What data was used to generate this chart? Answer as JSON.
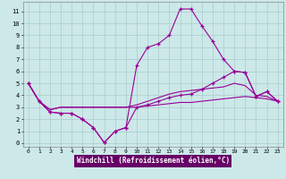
{
  "xlabel": "Windchill (Refroidissement éolien,°C)",
  "background_color": "#cce8e8",
  "grid_color": "#aacccc",
  "line_color": "#990099",
  "xlabel_bg": "#660066",
  "xlabel_fg": "#ffffff",
  "xlim": [
    -0.5,
    23.5
  ],
  "ylim": [
    -0.3,
    11.8
  ],
  "xticks": [
    0,
    1,
    2,
    3,
    4,
    5,
    6,
    7,
    8,
    9,
    10,
    11,
    12,
    13,
    14,
    15,
    16,
    17,
    18,
    19,
    20,
    21,
    22,
    23
  ],
  "yticks": [
    0,
    1,
    2,
    3,
    4,
    5,
    6,
    7,
    8,
    9,
    10,
    11
  ],
  "lines": [
    {
      "x": [
        0,
        1,
        2,
        3,
        4,
        5,
        6,
        7,
        8,
        9,
        10,
        11,
        12,
        13,
        14,
        15,
        16,
        17,
        18,
        19,
        20,
        21,
        22,
        23
      ],
      "y": [
        5.0,
        3.5,
        2.6,
        2.5,
        2.5,
        2.0,
        1.3,
        0.05,
        1.0,
        1.3,
        6.5,
        8.0,
        8.3,
        9.0,
        11.2,
        11.2,
        9.8,
        8.5,
        7.0,
        6.0,
        5.9,
        3.9,
        4.3,
        3.5
      ],
      "markers": true
    },
    {
      "x": [
        0,
        1,
        2,
        3,
        4,
        5,
        6,
        7,
        8,
        9,
        10,
        11,
        12,
        13,
        14,
        15,
        16,
        17,
        18,
        19,
        20,
        21,
        22,
        23
      ],
      "y": [
        5.0,
        3.5,
        2.6,
        2.5,
        2.5,
        2.0,
        1.3,
        0.05,
        1.0,
        1.3,
        3.0,
        3.2,
        3.5,
        3.8,
        4.0,
        4.1,
        4.5,
        5.0,
        5.5,
        6.0,
        5.9,
        3.9,
        4.3,
        3.5
      ],
      "markers": true
    },
    {
      "x": [
        0,
        1,
        2,
        3,
        4,
        5,
        6,
        7,
        8,
        9,
        10,
        11,
        12,
        13,
        14,
        15,
        16,
        17,
        18,
        19,
        20,
        21,
        22,
        23
      ],
      "y": [
        5.0,
        3.5,
        2.8,
        3.0,
        3.0,
        3.0,
        3.0,
        3.0,
        3.0,
        3.0,
        3.2,
        3.5,
        3.8,
        4.1,
        4.3,
        4.4,
        4.5,
        4.6,
        4.7,
        5.0,
        4.8,
        4.0,
        3.9,
        3.5
      ],
      "markers": false
    },
    {
      "x": [
        0,
        1,
        2,
        3,
        4,
        5,
        6,
        7,
        8,
        9,
        10,
        11,
        12,
        13,
        14,
        15,
        16,
        17,
        18,
        19,
        20,
        21,
        22,
        23
      ],
      "y": [
        5.0,
        3.5,
        2.8,
        3.0,
        3.0,
        3.0,
        3.0,
        3.0,
        3.0,
        3.0,
        3.0,
        3.1,
        3.2,
        3.3,
        3.4,
        3.4,
        3.5,
        3.6,
        3.7,
        3.8,
        3.9,
        3.8,
        3.7,
        3.5
      ],
      "markers": false
    }
  ]
}
